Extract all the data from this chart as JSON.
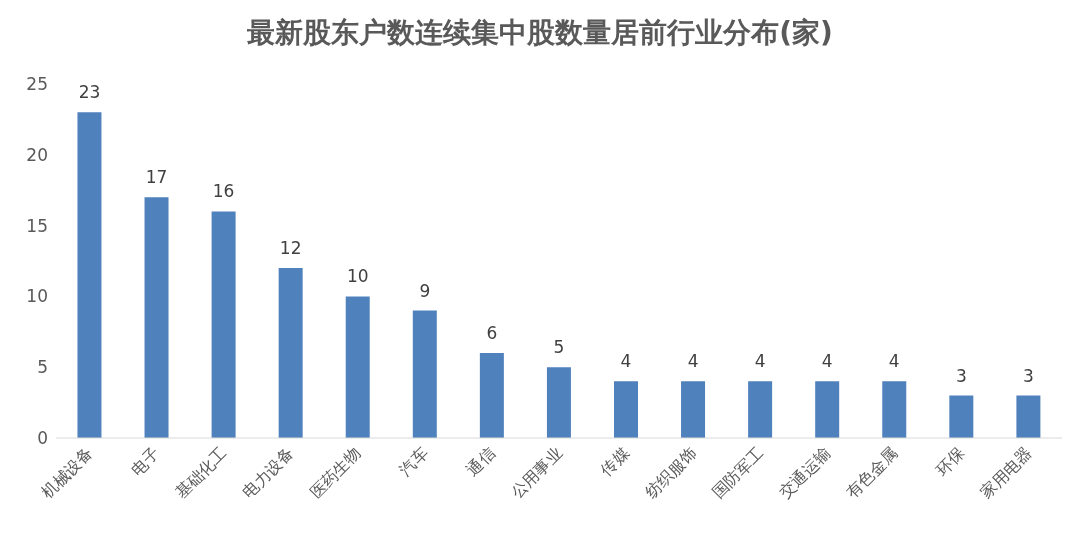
{
  "chart_data": {
    "type": "bar",
    "title": "最新股东户数连续集中股数量居前行业分布(家)",
    "categories": [
      "机械设备",
      "电子",
      "基础化工",
      "电力设备",
      "医药生物",
      "汽车",
      "通信",
      "公用事业",
      "传媒",
      "纺织服饰",
      "国防军工",
      "交通运输",
      "有色金属",
      "环保",
      "家用电器"
    ],
    "values": [
      23,
      17,
      16,
      12,
      10,
      9,
      6,
      5,
      4,
      4,
      4,
      4,
      4,
      3,
      3
    ],
    "color": "#4f81bd",
    "ylim": [
      0,
      25
    ],
    "yticks": [
      0,
      5,
      10,
      15,
      20,
      25
    ],
    "data_labels": true,
    "grid": false,
    "legend": false
  }
}
